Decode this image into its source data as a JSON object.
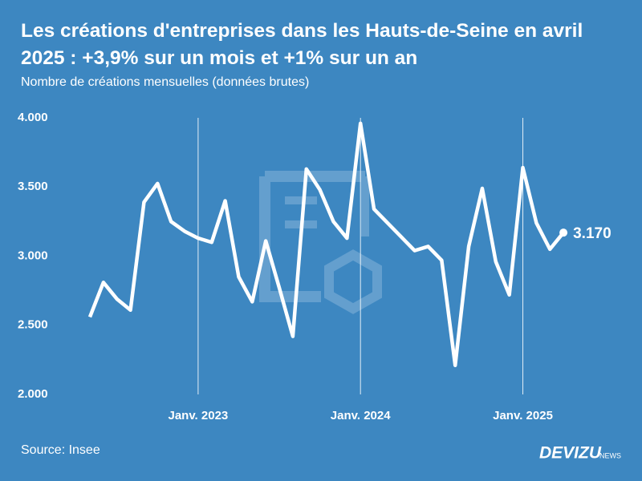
{
  "chart_data": {
    "type": "line",
    "title": "Les créations d'entreprises dans les Hauts-de-Seine en avril 2025 : +3,9% sur un mois et +1% sur un an",
    "subtitle": "Nombre de créations mensuelles (données brutes)",
    "source": "Source: Insee",
    "brand": "DEVIZU",
    "brand_suffix": "NEWS",
    "categories": [
      null,
      null,
      null,
      null,
      null,
      null,
      null,
      null,
      "Janv. 2023",
      null,
      null,
      null,
      null,
      null,
      null,
      null,
      null,
      null,
      null,
      null,
      "Janv. 2024",
      null,
      null,
      null,
      null,
      null,
      null,
      null,
      null,
      null,
      null,
      null,
      "Janv. 2025",
      null,
      null,
      null
    ],
    "series": [
      {
        "name": "Créations",
        "color": "#ffffff",
        "values": [
          2560,
          2810,
          2690,
          2610,
          3390,
          3525,
          3250,
          3180,
          3130,
          3100,
          3400,
          2850,
          2670,
          3110,
          2770,
          2420,
          3630,
          3480,
          3250,
          3130,
          3960,
          3340,
          3240,
          3140,
          3040,
          3070,
          2970,
          2210,
          3070,
          3490,
          2960,
          2720,
          3640,
          3240,
          3050,
          3170
        ],
        "value_labels": [
          null,
          null,
          null,
          null,
          null,
          null,
          null,
          null,
          null,
          null,
          null,
          null,
          null,
          null,
          null,
          null,
          null,
          null,
          null,
          null,
          null,
          null,
          null,
          null,
          null,
          null,
          null,
          null,
          null,
          null,
          null,
          null,
          null,
          null,
          null,
          "3.170"
        ]
      }
    ],
    "ylim": [
      2000,
      4000
    ],
    "yticks": [
      {
        "value": 2000,
        "label": "2.000"
      },
      {
        "value": 2500,
        "label": "2.500"
      },
      {
        "value": 3000,
        "label": "3.000"
      },
      {
        "value": 3500,
        "label": "3.500"
      },
      {
        "value": 4000,
        "label": "4.000"
      }
    ],
    "grid_x": true
  }
}
